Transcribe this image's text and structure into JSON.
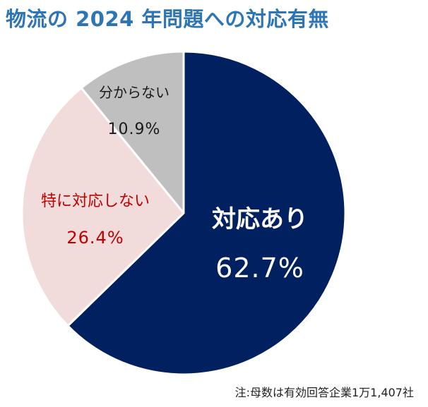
{
  "title": "物流の 2024 年問題への対応有無",
  "note": "注:母数は有効回答企業1万1,407社",
  "chart_data": {
    "type": "pie",
    "start_angle_deg": 0,
    "direction": "clockwise",
    "slices": [
      {
        "label": "対応あり",
        "value": 62.7,
        "display": "62.7%",
        "color": "#002060",
        "text_color": "#ffffff"
      },
      {
        "label": "特に対応しない",
        "value": 26.4,
        "display": "26.4%",
        "color": "#f2dcdb",
        "text_color": "#c00000"
      },
      {
        "label": "分からない",
        "value": 10.9,
        "display": "10.9%",
        "color": "#bfbfbf",
        "text_color": "#1a1a1a"
      }
    ]
  }
}
